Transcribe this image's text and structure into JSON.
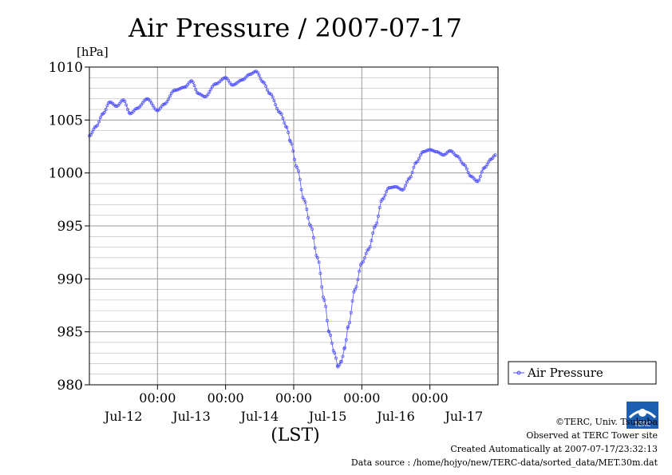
{
  "chart_data": {
    "type": "line",
    "title": "Air Pressure / 2007-07-17",
    "ylabel": "[hPa]",
    "xlabel": "(LST)",
    "ylim": [
      980,
      1010
    ],
    "yticks": [
      980,
      985,
      990,
      995,
      1000,
      1005,
      1010
    ],
    "y_minor_step": 1,
    "x_tick_labels": [
      "00:00",
      "00:00",
      "00:00",
      "00:00",
      "00:00"
    ],
    "x_date_labels": [
      "Jul-12",
      "Jul-13",
      "Jul-14",
      "Jul-15",
      "Jul-16",
      "Jul-17"
    ],
    "x_unit": "days",
    "xlim": [
      0,
      6
    ],
    "x_major_ticks": [
      1,
      2,
      3,
      4,
      5
    ],
    "grid": true,
    "legend_position": "right",
    "colors": {
      "series": "#4f4fff",
      "grid": "#9a9a9a",
      "axis": "#000000"
    },
    "series": [
      {
        "name": "Air Pressure",
        "points": [
          [
            0.0,
            1003.5
          ],
          [
            0.1,
            1004.4
          ],
          [
            0.2,
            1005.6
          ],
          [
            0.3,
            1006.7
          ],
          [
            0.4,
            1006.3
          ],
          [
            0.5,
            1006.9
          ],
          [
            0.6,
            1005.6
          ],
          [
            0.7,
            1006.1
          ],
          [
            0.85,
            1007.0
          ],
          [
            1.0,
            1005.9
          ],
          [
            1.1,
            1006.5
          ],
          [
            1.25,
            1007.8
          ],
          [
            1.4,
            1008.1
          ],
          [
            1.5,
            1008.7
          ],
          [
            1.6,
            1007.5
          ],
          [
            1.7,
            1007.2
          ],
          [
            1.85,
            1008.4
          ],
          [
            2.0,
            1009.0
          ],
          [
            2.1,
            1008.3
          ],
          [
            2.25,
            1008.8
          ],
          [
            2.35,
            1009.3
          ],
          [
            2.45,
            1009.6
          ],
          [
            2.55,
            1008.6
          ],
          [
            2.65,
            1007.5
          ],
          [
            2.8,
            1005.7
          ],
          [
            2.9,
            1004.3
          ],
          [
            2.95,
            1003.0
          ],
          [
            3.05,
            1000.5
          ],
          [
            3.15,
            997.5
          ],
          [
            3.25,
            995.0
          ],
          [
            3.35,
            992.0
          ],
          [
            3.45,
            988.0
          ],
          [
            3.52,
            985.0
          ],
          [
            3.6,
            983.0
          ],
          [
            3.65,
            981.7
          ],
          [
            3.7,
            982.2
          ],
          [
            3.75,
            983.5
          ],
          [
            3.8,
            985.5
          ],
          [
            3.9,
            989.0
          ],
          [
            4.0,
            991.5
          ],
          [
            4.1,
            992.8
          ],
          [
            4.2,
            995.0
          ],
          [
            4.3,
            997.5
          ],
          [
            4.4,
            998.6
          ],
          [
            4.5,
            998.7
          ],
          [
            4.6,
            998.4
          ],
          [
            4.7,
            999.5
          ],
          [
            4.8,
            1001.0
          ],
          [
            4.9,
            1002.0
          ],
          [
            5.0,
            1002.2
          ],
          [
            5.1,
            1002.0
          ],
          [
            5.2,
            1001.7
          ],
          [
            5.3,
            1002.1
          ],
          [
            5.4,
            1001.6
          ],
          [
            5.5,
            1000.8
          ],
          [
            5.6,
            999.7
          ],
          [
            5.7,
            999.2
          ],
          [
            5.8,
            1000.5
          ],
          [
            5.9,
            1001.3
          ],
          [
            5.96,
            1001.7
          ]
        ]
      }
    ]
  },
  "footer": {
    "copyright": "©TERC, Univ. Tsukuba",
    "observed": "Observed at TERC Tower site",
    "created": "Created Automatically at 2007-07-17/23:32:13",
    "source": "Data source : /home/hojyo/new/TERC-data/sorted_data/MET.30m.dat",
    "logo_text": "TERC"
  }
}
